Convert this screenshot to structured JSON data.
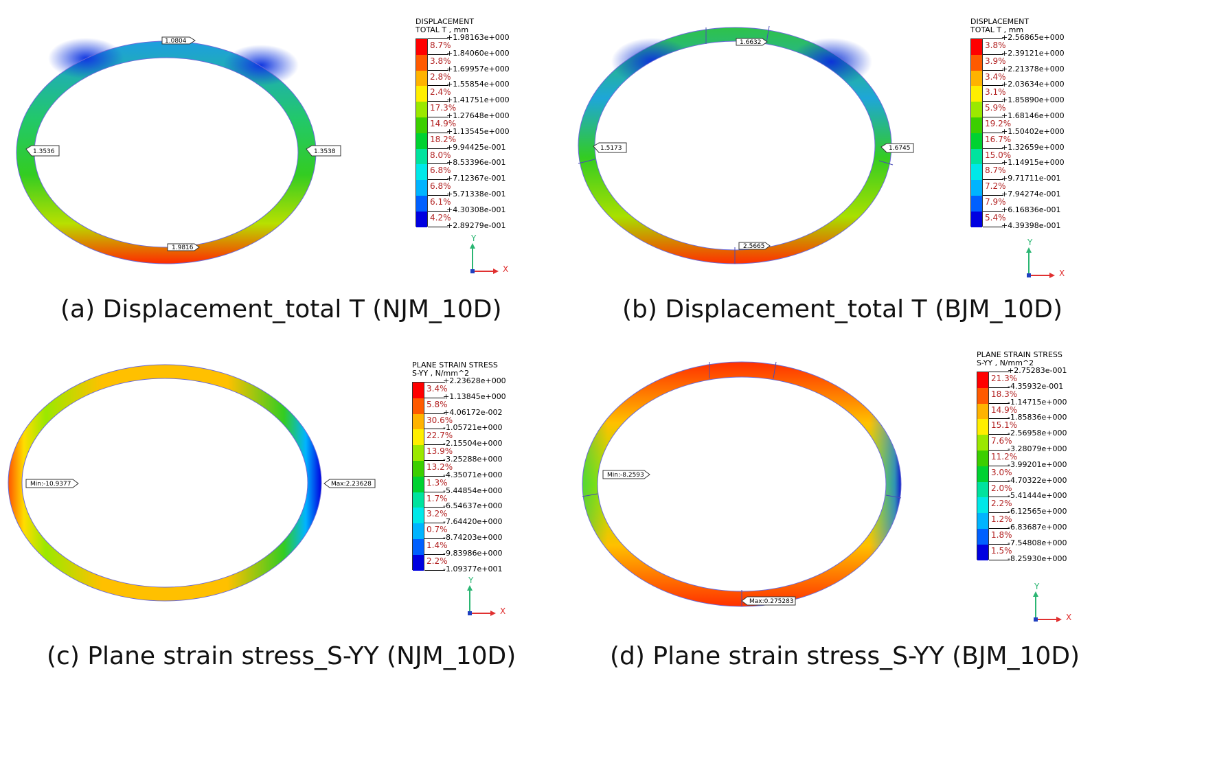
{
  "panels": [
    {
      "caption": "(a) Displacement_total T (NJM_10D)",
      "legend": {
        "title1": "DISPLACEMENT",
        "title2": "TOTAL T , mm",
        "values": [
          "+1.98163e+000",
          "+1.84060e+000",
          "+1.69957e+000",
          "+1.55854e+000",
          "+1.41751e+000",
          "+1.27648e+000",
          "+1.13545e+000",
          "+9.94425e-001",
          "+8.53396e-001",
          "+7.12367e-001",
          "+5.71338e-001",
          "+4.30308e-001",
          "+2.89279e-001"
        ],
        "percents": [
          "8.7%",
          "3.8%",
          "2.8%",
          "2.4%",
          "17.3%",
          "14.9%",
          "18.2%",
          "8.0%",
          "6.8%",
          "6.8%",
          "6.1%",
          "4.2%"
        ],
        "colors": [
          "#ff0000",
          "#ff5a00",
          "#ffb300",
          "#ffee00",
          "#9be800",
          "#3ccf00",
          "#00d231",
          "#00e39e",
          "#00e8e8",
          "#00b4ff",
          "#0060ff",
          "#0000e0"
        ]
      },
      "tags": [
        "1.0804",
        "1.3536",
        "1.3538",
        "1.9816"
      ],
      "axes": {
        "y": "Y",
        "x": "X"
      }
    },
    {
      "caption": "(b) Displacement_total T (BJM_10D)",
      "legend": {
        "title1": "DISPLACEMENT",
        "title2": "TOTAL T , mm",
        "values": [
          "+2.56865e+000",
          "+2.39121e+000",
          "+2.21378e+000",
          "+2.03634e+000",
          "+1.85890e+000",
          "+1.68146e+000",
          "+1.50402e+000",
          "+1.32659e+000",
          "+1.14915e+000",
          "+9.71711e-001",
          "+7.94274e-001",
          "+6.16836e-001",
          "+4.39398e-001"
        ],
        "percents": [
          "3.8%",
          "3.9%",
          "3.4%",
          "3.1%",
          "5.9%",
          "19.2%",
          "16.7%",
          "15.0%",
          "8.7%",
          "7.2%",
          "7.9%",
          "5.4%"
        ],
        "colors": [
          "#ff0000",
          "#ff5a00",
          "#ffb300",
          "#ffee00",
          "#9be800",
          "#3ccf00",
          "#00d231",
          "#00e39e",
          "#00e8e8",
          "#00b4ff",
          "#0060ff",
          "#0000e0"
        ]
      },
      "tags": [
        "1.6632",
        "1.5173",
        "1.6745",
        "2.5665"
      ],
      "axes": {
        "y": "Y",
        "x": "X"
      }
    },
    {
      "caption": "(c) Plane strain stress_S-YY (NJM_10D)",
      "legend": {
        "title1": "PLANE STRAIN STRESS",
        "title2": "S-YY , N/mm^2",
        "values": [
          "+2.23628e+000",
          "+1.13845e+000",
          "+4.06172e-002",
          "-1.05721e+000",
          "-2.15504e+000",
          "-3.25288e+000",
          "-4.35071e+000",
          "-5.44854e+000",
          "-6.54637e+000",
          "-7.64420e+000",
          "-8.74203e+000",
          "-9.83986e+000",
          "-1.09377e+001"
        ],
        "percents": [
          "3.4%",
          "5.8%",
          "30.6%",
          "22.7%",
          "13.9%",
          "13.2%",
          "1.3%",
          "1.7%",
          "3.2%",
          "0.7%",
          "1.4%",
          "2.2%"
        ],
        "colors": [
          "#ff0000",
          "#ff5a00",
          "#ffb300",
          "#ffee00",
          "#9be800",
          "#3ccf00",
          "#00d231",
          "#00e39e",
          "#00e8e8",
          "#00b4ff",
          "#0060ff",
          "#0000e0"
        ]
      },
      "tags": [
        "Min:-10.9377",
        "Max:2.23628"
      ],
      "axes": {
        "y": "Y",
        "x": "X"
      }
    },
    {
      "caption": "(d) Plane strain stress_S-YY (BJM_10D)",
      "legend": {
        "title1": "PLANE STRAIN STRESS",
        "title2": "S-YY , N/mm^2",
        "values": [
          "+2.75283e-001",
          "-4.35932e-001",
          "-1.14715e+000",
          "-1.85836e+000",
          "-2.56958e+000",
          "-3.28079e+000",
          "-3.99201e+000",
          "-4.70322e+000",
          "-5.41444e+000",
          "-6.12565e+000",
          "-6.83687e+000",
          "-7.54808e+000",
          "-8.25930e+000"
        ],
        "percents": [
          "21.3%",
          "18.3%",
          "14.9%",
          "15.1%",
          "7.6%",
          "11.2%",
          "3.0%",
          "2.0%",
          "2.2%",
          "1.2%",
          "1.8%",
          "1.5%"
        ],
        "colors": [
          "#ff0000",
          "#ff5a00",
          "#ffb300",
          "#ffee00",
          "#9be800",
          "#3ccf00",
          "#00d231",
          "#00e39e",
          "#00e8e8",
          "#00b4ff",
          "#0060ff",
          "#0000e0"
        ]
      },
      "tags": [
        "Min:-8.2593",
        "Max:0.275283"
      ],
      "axes": {
        "y": "Y",
        "x": "X"
      }
    }
  ]
}
